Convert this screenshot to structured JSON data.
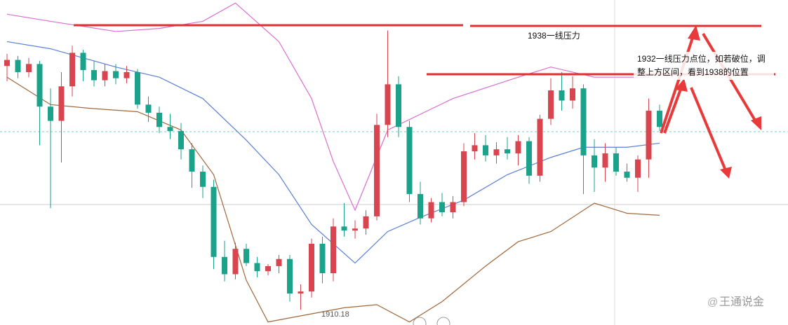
{
  "chart_data": {
    "type": "candlestick",
    "ylim": [
      1908.5,
      1940.5
    ],
    "up_color": "#d9454f",
    "down_color": "#1aa38a",
    "open": [
      1934.0,
      1934.6,
      1933.4,
      1934.2,
      1930.0,
      1928.6,
      1932.0,
      1935.3,
      1933.6,
      1932.6,
      1933.5,
      1932.8,
      1933.4,
      1930.2,
      1929.4,
      1928.0,
      1927.6,
      1925.8,
      1923.6,
      1922.1,
      1915.2,
      1913.5,
      1916.0,
      1914.6,
      1913.8,
      1914.3,
      1915.0,
      1911.6,
      1911.8,
      1916.5,
      1913.6,
      1918.2,
      1917.8,
      1918.0,
      1919.2,
      1928.2,
      1932.2,
      1928.0,
      1921.4,
      1919.0,
      1920.6,
      1919.6,
      1920.6,
      1925.6,
      1926.2,
      1925.2,
      1925.8,
      1925.4,
      1926.6,
      1923.2,
      1928.8,
      1931.6,
      1930.6,
      1931.8,
      1925.2,
      1924.0,
      1925.4,
      1923.6,
      1923.0,
      1924.8,
      1929.6
    ],
    "high": [
      1935.2,
      1935.0,
      1934.8,
      1934.5,
      1931.8,
      1933.4,
      1936.0,
      1935.6,
      1934.5,
      1934.2,
      1934.2,
      1934.0,
      1933.7,
      1931.0,
      1930.0,
      1929.3,
      1928.4,
      1926.4,
      1924.2,
      1922.8,
      1916.8,
      1916.6,
      1916.5,
      1915.2,
      1914.5,
      1915.4,
      1915.4,
      1912.5,
      1917.0,
      1917.2,
      1919.0,
      1920.5,
      1918.8,
      1919.8,
      1929.3,
      1937.5,
      1933.0,
      1928.6,
      1922.6,
      1921.0,
      1921.5,
      1921.2,
      1926.4,
      1927.4,
      1927.2,
      1926.5,
      1927.0,
      1927.2,
      1927.0,
      1929.2,
      1932.8,
      1933.4,
      1933.0,
      1932.2,
      1926.8,
      1926.4,
      1926.0,
      1924.4,
      1925.2,
      1930.8,
      1930.2
    ],
    "low": [
      1932.5,
      1932.8,
      1932.9,
      1926.2,
      1920.0,
      1924.5,
      1931.0,
      1932.5,
      1932.0,
      1932.0,
      1932.2,
      1932.3,
      1929.8,
      1928.5,
      1927.4,
      1926.8,
      1924.8,
      1922.0,
      1921.0,
      1914.0,
      1912.8,
      1913.0,
      1914.3,
      1913.2,
      1913.4,
      1913.6,
      1910.8,
      1910.0,
      1911.2,
      1912.6,
      1912.8,
      1917.2,
      1917.0,
      1917.4,
      1918.8,
      1927.0,
      1927.0,
      1920.6,
      1918.4,
      1918.6,
      1919.2,
      1919.0,
      1920.2,
      1924.8,
      1924.6,
      1924.4,
      1924.8,
      1924.2,
      1922.4,
      1922.6,
      1928.2,
      1929.6,
      1929.8,
      1921.4,
      1921.6,
      1922.6,
      1923.2,
      1922.6,
      1921.6,
      1923.0,
      1927.6
    ],
    "close": [
      1934.6,
      1933.4,
      1934.2,
      1930.0,
      1928.6,
      1932.0,
      1935.3,
      1933.6,
      1932.6,
      1933.5,
      1932.8,
      1933.4,
      1930.2,
      1929.4,
      1928.0,
      1927.6,
      1925.8,
      1923.6,
      1922.1,
      1915.2,
      1913.5,
      1916.0,
      1914.6,
      1913.8,
      1914.3,
      1915.0,
      1911.6,
      1911.8,
      1916.5,
      1913.6,
      1918.2,
      1917.8,
      1918.0,
      1919.2,
      1928.2,
      1932.2,
      1928.0,
      1921.4,
      1919.0,
      1920.6,
      1919.6,
      1920.6,
      1925.6,
      1926.2,
      1925.2,
      1925.8,
      1925.4,
      1926.6,
      1923.2,
      1928.8,
      1931.6,
      1930.6,
      1931.8,
      1925.2,
      1924.0,
      1925.4,
      1923.6,
      1923.0,
      1924.8,
      1929.6,
      1928.0
    ],
    "bands": [
      {
        "color": "#d86fd0",
        "x": [
          0,
          4,
          10,
          14,
          18,
          21,
          25,
          28,
          30,
          32,
          35,
          41,
          47,
          50,
          54,
          59
        ],
        "values": [
          1939.1,
          1938.4,
          1937.4,
          1937.7,
          1938.4,
          1940.2,
          1936.4,
          1930.8,
          1924.6,
          1919.8,
          1927.7,
          1930.8,
          1932.9,
          1933.9,
          1932.9,
          1932.9
        ]
      },
      {
        "color": "#5a7fd6",
        "x": [
          0,
          4,
          10,
          14,
          18,
          22,
          25,
          28,
          32,
          35,
          38,
          42,
          46,
          50,
          53,
          57,
          60
        ],
        "values": [
          1936.4,
          1935.7,
          1933.9,
          1932.9,
          1930.8,
          1926.7,
          1923.3,
          1918.4,
          1914.6,
          1917.7,
          1919.1,
          1920.8,
          1923.3,
          1925.0,
          1926.0,
          1926.0,
          1926.4
        ]
      },
      {
        "color": "#a0683a",
        "x": [
          0,
          4,
          8,
          12,
          16,
          19,
          22,
          24,
          31,
          34,
          37,
          40,
          44,
          47,
          50,
          54,
          57,
          60
        ],
        "values": [
          1932.9,
          1930.2,
          1929.8,
          1929.5,
          1927.7,
          1923.3,
          1912.9,
          1908.8,
          1910.2,
          1910.5,
          1908.8,
          1910.8,
          1914.3,
          1916.7,
          1917.7,
          1920.5,
          1919.5,
          1919.3
        ]
      }
    ],
    "low_label": "1910.18",
    "annotations": [
      "1938一线压力",
      "1932一线压力点位，如若破位，调",
      "整上方区间，看到1938的位置"
    ],
    "watermark": "王通说金"
  }
}
